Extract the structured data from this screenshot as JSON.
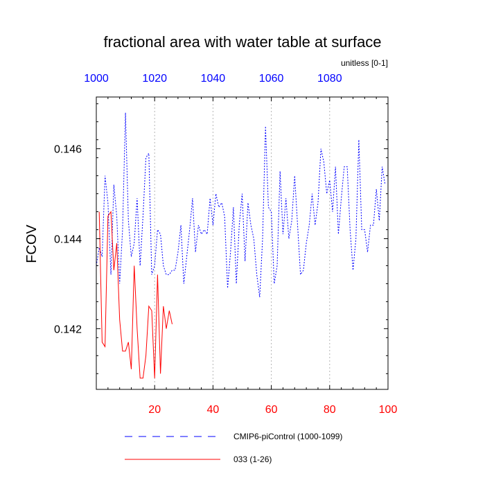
{
  "chart_data": {
    "type": "line",
    "title": "fractional area with water table at surface",
    "units_label": "unitless [0-1]",
    "ylabel": "FCOV",
    "ylim": [
      0.14065,
      0.14715
    ],
    "yticks": [
      0.142,
      0.144,
      0.146
    ],
    "ytick_labels": [
      "0.142",
      "0.144",
      "0.146"
    ],
    "x_bottom": {
      "range": [
        0,
        100
      ],
      "ticks": [
        20,
        40,
        60,
        80,
        100
      ],
      "tick_labels": [
        "20",
        "40",
        "60",
        "80",
        "100"
      ],
      "color": "#ff0000"
    },
    "x_top": {
      "range": [
        1000,
        1100
      ],
      "ticks": [
        1000,
        1020,
        1040,
        1060,
        1080
      ],
      "tick_labels": [
        "1000",
        "1020",
        "1040",
        "1060",
        "1080"
      ],
      "color": "#0000ff"
    },
    "grid": "vertical dashed at x ticks",
    "legend_position": "bottom",
    "series": [
      {
        "name": "CMIP6-piControl (1000-1099)",
        "axis": "top",
        "color": "#0000ff",
        "style": "dashed",
        "x": [
          1000,
          1001,
          1002,
          1003,
          1004,
          1005,
          1006,
          1007,
          1008,
          1009,
          1010,
          1011,
          1012,
          1013,
          1014,
          1015,
          1016,
          1017,
          1018,
          1019,
          1020,
          1021,
          1022,
          1023,
          1024,
          1025,
          1026,
          1027,
          1028,
          1029,
          1030,
          1031,
          1032,
          1033,
          1034,
          1035,
          1036,
          1037,
          1038,
          1039,
          1040,
          1041,
          1042,
          1043,
          1044,
          1045,
          1046,
          1047,
          1048,
          1049,
          1050,
          1051,
          1052,
          1053,
          1054,
          1055,
          1056,
          1057,
          1058,
          1059,
          1060,
          1061,
          1062,
          1063,
          1064,
          1065,
          1066,
          1067,
          1068,
          1069,
          1070,
          1071,
          1072,
          1073,
          1074,
          1075,
          1076,
          1077,
          1078,
          1079,
          1080,
          1081,
          1082,
          1083,
          1084,
          1085,
          1086,
          1087,
          1088,
          1089,
          1090,
          1091,
          1092,
          1093,
          1094,
          1095,
          1096,
          1097,
          1098,
          1099
        ],
        "values": [
          0.1434,
          0.1438,
          0.1436,
          0.1454,
          0.1448,
          0.1432,
          0.1452,
          0.1445,
          0.143,
          0.1442,
          0.1468,
          0.1444,
          0.1436,
          0.1439,
          0.1449,
          0.1434,
          0.1445,
          0.1458,
          0.1459,
          0.1432,
          0.1434,
          0.1442,
          0.1441,
          0.1434,
          0.1432,
          0.1432,
          0.1433,
          0.1433,
          0.1437,
          0.1443,
          0.143,
          0.1436,
          0.1442,
          0.1449,
          0.1437,
          0.1443,
          0.1441,
          0.1442,
          0.1441,
          0.1449,
          0.1443,
          0.145,
          0.1447,
          0.1448,
          0.1445,
          0.1429,
          0.1437,
          0.1447,
          0.143,
          0.1443,
          0.145,
          0.1435,
          0.1448,
          0.1443,
          0.144,
          0.1432,
          0.1427,
          0.144,
          0.1465,
          0.1447,
          0.1446,
          0.143,
          0.1434,
          0.1455,
          0.1441,
          0.1449,
          0.144,
          0.1444,
          0.1454,
          0.1443,
          0.1432,
          0.1433,
          0.1439,
          0.1443,
          0.145,
          0.1443,
          0.1448,
          0.146,
          0.1457,
          0.145,
          0.1453,
          0.1446,
          0.1456,
          0.1441,
          0.1449,
          0.1456,
          0.1456,
          0.1442,
          0.1433,
          0.144,
          0.1462,
          0.1442,
          0.1442,
          0.1437,
          0.1443,
          0.1443,
          0.1451,
          0.1444,
          0.1456,
          0.1452
        ]
      },
      {
        "name": "033 (1-26)",
        "axis": "bottom",
        "color": "#ff0000",
        "style": "solid",
        "x": [
          1,
          2,
          3,
          4,
          5,
          6,
          7,
          8,
          9,
          10,
          11,
          12,
          13,
          14,
          15,
          16,
          17,
          18,
          19,
          20,
          21,
          22,
          23,
          24,
          25,
          26
        ],
        "values": [
          0.1446,
          0.1417,
          0.1416,
          0.1445,
          0.1446,
          0.1433,
          0.1439,
          0.1422,
          0.1415,
          0.1415,
          0.1417,
          0.1411,
          0.1434,
          0.142,
          0.1409,
          0.1409,
          0.1414,
          0.1425,
          0.1424,
          0.1409,
          0.1432,
          0.141,
          0.1425,
          0.142,
          0.1424,
          0.1421
        ]
      }
    ]
  }
}
